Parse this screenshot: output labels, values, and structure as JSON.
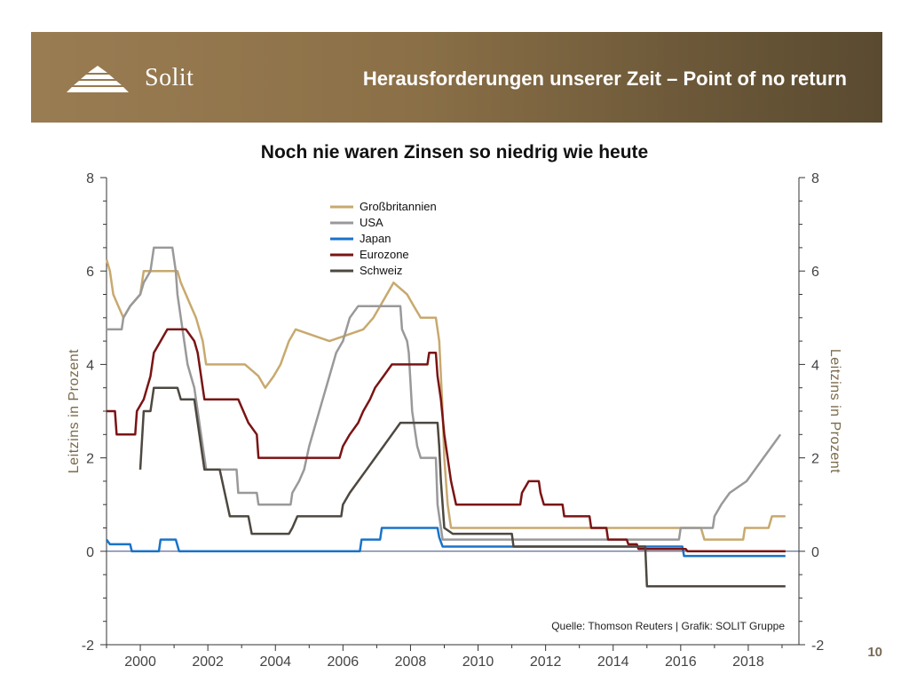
{
  "header": {
    "logo_text": "Solit",
    "title": "Herausforderungen unserer Zeit – Point of no return"
  },
  "page_number": "10",
  "colors": {
    "banner": "#8b7047",
    "grossbritannien": "#c8a96e",
    "usa": "#999999",
    "japan": "#1a73c9",
    "eurozone": "#7a1414",
    "schweiz": "#4d4840"
  },
  "chart_data": {
    "type": "line",
    "title": "Noch nie waren Zinsen so niedrig wie heute",
    "ylabel_left": "Leitzins in Prozent",
    "ylabel_right": "Leitzins in Prozent",
    "xlim": [
      1999,
      2019.5
    ],
    "ylim": [
      -2,
      8
    ],
    "x_ticks": [
      2000,
      2002,
      2004,
      2006,
      2008,
      2010,
      2012,
      2014,
      2016,
      2018
    ],
    "y_ticks": [
      -2,
      0,
      2,
      4,
      6,
      8
    ],
    "source": "Quelle: Thomson Reuters | Grafik: SOLIT Gruppe",
    "legend_position": "top-center",
    "series": [
      {
        "name": "Großbritannien",
        "color_key": "grossbritannien",
        "points": [
          [
            1999.0,
            6.25
          ],
          [
            1999.1,
            6.0
          ],
          [
            1999.2,
            5.5
          ],
          [
            1999.35,
            5.25
          ],
          [
            1999.5,
            5.0
          ],
          [
            1999.7,
            5.25
          ],
          [
            2000.0,
            5.5
          ],
          [
            2000.1,
            6.0
          ],
          [
            2001.1,
            6.0
          ],
          [
            2001.2,
            5.75
          ],
          [
            2001.35,
            5.5
          ],
          [
            2001.5,
            5.25
          ],
          [
            2001.65,
            5.0
          ],
          [
            2001.75,
            4.75
          ],
          [
            2001.85,
            4.5
          ],
          [
            2001.95,
            4.0
          ],
          [
            2003.1,
            4.0
          ],
          [
            2003.5,
            3.75
          ],
          [
            2003.7,
            3.5
          ],
          [
            2003.95,
            3.75
          ],
          [
            2004.15,
            4.0
          ],
          [
            2004.4,
            4.5
          ],
          [
            2004.6,
            4.75
          ],
          [
            2005.6,
            4.5
          ],
          [
            2006.6,
            4.75
          ],
          [
            2006.9,
            5.0
          ],
          [
            2007.1,
            5.25
          ],
          [
            2007.3,
            5.5
          ],
          [
            2007.5,
            5.75
          ],
          [
            2007.9,
            5.5
          ],
          [
            2008.1,
            5.25
          ],
          [
            2008.3,
            5.0
          ],
          [
            2008.75,
            5.0
          ],
          [
            2008.85,
            4.5
          ],
          [
            2008.95,
            3.0
          ],
          [
            2009.0,
            2.0
          ],
          [
            2009.1,
            1.0
          ],
          [
            2009.2,
            0.5
          ],
          [
            2016.6,
            0.5
          ],
          [
            2016.7,
            0.25
          ],
          [
            2017.85,
            0.25
          ],
          [
            2017.9,
            0.5
          ],
          [
            2018.6,
            0.5
          ],
          [
            2018.7,
            0.75
          ],
          [
            2019.1,
            0.75
          ]
        ]
      },
      {
        "name": "USA",
        "color_key": "usa",
        "points": [
          [
            1999.0,
            4.75
          ],
          [
            1999.45,
            4.75
          ],
          [
            1999.5,
            5.0
          ],
          [
            1999.7,
            5.25
          ],
          [
            2000.0,
            5.5
          ],
          [
            2000.1,
            5.75
          ],
          [
            2000.3,
            6.0
          ],
          [
            2000.4,
            6.5
          ],
          [
            2000.95,
            6.5
          ],
          [
            2001.05,
            6.0
          ],
          [
            2001.1,
            5.5
          ],
          [
            2001.2,
            5.0
          ],
          [
            2001.3,
            4.5
          ],
          [
            2001.4,
            4.0
          ],
          [
            2001.5,
            3.75
          ],
          [
            2001.6,
            3.5
          ],
          [
            2001.7,
            3.0
          ],
          [
            2001.8,
            2.5
          ],
          [
            2001.9,
            2.0
          ],
          [
            2001.95,
            1.75
          ],
          [
            2002.85,
            1.75
          ],
          [
            2002.9,
            1.25
          ],
          [
            2003.45,
            1.25
          ],
          [
            2003.5,
            1.0
          ],
          [
            2004.45,
            1.0
          ],
          [
            2004.5,
            1.25
          ],
          [
            2004.7,
            1.5
          ],
          [
            2004.85,
            1.75
          ],
          [
            2005.0,
            2.25
          ],
          [
            2005.2,
            2.75
          ],
          [
            2005.4,
            3.25
          ],
          [
            2005.6,
            3.75
          ],
          [
            2005.8,
            4.25
          ],
          [
            2006.0,
            4.5
          ],
          [
            2006.2,
            5.0
          ],
          [
            2006.45,
            5.25
          ],
          [
            2007.7,
            5.25
          ],
          [
            2007.75,
            4.75
          ],
          [
            2007.9,
            4.5
          ],
          [
            2007.95,
            4.25
          ],
          [
            2008.05,
            3.0
          ],
          [
            2008.2,
            2.25
          ],
          [
            2008.3,
            2.0
          ],
          [
            2008.75,
            2.0
          ],
          [
            2008.8,
            1.0
          ],
          [
            2008.95,
            0.25
          ],
          [
            2015.95,
            0.25
          ],
          [
            2016.0,
            0.5
          ],
          [
            2016.95,
            0.5
          ],
          [
            2017.0,
            0.75
          ],
          [
            2017.2,
            1.0
          ],
          [
            2017.45,
            1.25
          ],
          [
            2017.95,
            1.5
          ],
          [
            2018.2,
            1.75
          ],
          [
            2018.45,
            2.0
          ],
          [
            2018.7,
            2.25
          ],
          [
            2018.95,
            2.5
          ]
        ]
      },
      {
        "name": "Japan",
        "color_key": "japan",
        "points": [
          [
            1999.0,
            0.25
          ],
          [
            1999.1,
            0.15
          ],
          [
            1999.7,
            0.15
          ],
          [
            1999.75,
            0.0
          ],
          [
            2000.55,
            0.0
          ],
          [
            2000.6,
            0.25
          ],
          [
            2001.05,
            0.25
          ],
          [
            2001.15,
            0.0
          ],
          [
            2006.5,
            0.0
          ],
          [
            2006.55,
            0.25
          ],
          [
            2007.1,
            0.25
          ],
          [
            2007.15,
            0.5
          ],
          [
            2008.8,
            0.5
          ],
          [
            2008.85,
            0.3
          ],
          [
            2008.95,
            0.1
          ],
          [
            2016.05,
            0.1
          ],
          [
            2016.1,
            -0.1
          ],
          [
            2019.1,
            -0.1
          ]
        ]
      },
      {
        "name": "Eurozone",
        "color_key": "eurozone",
        "points": [
          [
            1999.0,
            3.0
          ],
          [
            1999.25,
            3.0
          ],
          [
            1999.3,
            2.5
          ],
          [
            1999.85,
            2.5
          ],
          [
            1999.9,
            3.0
          ],
          [
            2000.1,
            3.25
          ],
          [
            2000.2,
            3.5
          ],
          [
            2000.3,
            3.75
          ],
          [
            2000.4,
            4.25
          ],
          [
            2000.6,
            4.5
          ],
          [
            2000.8,
            4.75
          ],
          [
            2001.35,
            4.75
          ],
          [
            2001.6,
            4.5
          ],
          [
            2001.7,
            4.25
          ],
          [
            2001.8,
            3.75
          ],
          [
            2001.9,
            3.25
          ],
          [
            2002.9,
            3.25
          ],
          [
            2003.2,
            2.75
          ],
          [
            2003.45,
            2.5
          ],
          [
            2003.5,
            2.0
          ],
          [
            2005.9,
            2.0
          ],
          [
            2006.0,
            2.25
          ],
          [
            2006.2,
            2.5
          ],
          [
            2006.45,
            2.75
          ],
          [
            2006.6,
            3.0
          ],
          [
            2006.8,
            3.25
          ],
          [
            2006.95,
            3.5
          ],
          [
            2007.2,
            3.75
          ],
          [
            2007.45,
            4.0
          ],
          [
            2008.5,
            4.0
          ],
          [
            2008.55,
            4.25
          ],
          [
            2008.75,
            4.25
          ],
          [
            2008.8,
            3.75
          ],
          [
            2008.9,
            3.25
          ],
          [
            2009.0,
            2.5
          ],
          [
            2009.1,
            2.0
          ],
          [
            2009.2,
            1.5
          ],
          [
            2009.35,
            1.0
          ],
          [
            2011.25,
            1.0
          ],
          [
            2011.3,
            1.25
          ],
          [
            2011.5,
            1.5
          ],
          [
            2011.8,
            1.5
          ],
          [
            2011.85,
            1.25
          ],
          [
            2011.95,
            1.0
          ],
          [
            2012.5,
            1.0
          ],
          [
            2012.55,
            0.75
          ],
          [
            2013.3,
            0.75
          ],
          [
            2013.35,
            0.5
          ],
          [
            2013.8,
            0.5
          ],
          [
            2013.85,
            0.25
          ],
          [
            2014.4,
            0.25
          ],
          [
            2014.45,
            0.15
          ],
          [
            2014.7,
            0.15
          ],
          [
            2014.75,
            0.05
          ],
          [
            2016.15,
            0.05
          ],
          [
            2016.2,
            0.0
          ],
          [
            2019.1,
            0.0
          ]
        ]
      },
      {
        "name": "Schweiz",
        "color_key": "schweiz",
        "points": [
          [
            2000.0,
            1.75
          ],
          [
            2000.1,
            3.0
          ],
          [
            2000.3,
            3.0
          ],
          [
            2000.4,
            3.5
          ],
          [
            2001.1,
            3.5
          ],
          [
            2001.2,
            3.25
          ],
          [
            2001.6,
            3.25
          ],
          [
            2001.7,
            2.75
          ],
          [
            2001.8,
            2.25
          ],
          [
            2001.9,
            1.75
          ],
          [
            2002.35,
            1.75
          ],
          [
            2002.5,
            1.25
          ],
          [
            2002.65,
            0.75
          ],
          [
            2003.2,
            0.75
          ],
          [
            2003.3,
            0.375
          ],
          [
            2004.4,
            0.375
          ],
          [
            2004.5,
            0.5
          ],
          [
            2004.65,
            0.75
          ],
          [
            2005.95,
            0.75
          ],
          [
            2006.0,
            1.0
          ],
          [
            2006.2,
            1.25
          ],
          [
            2006.45,
            1.5
          ],
          [
            2006.7,
            1.75
          ],
          [
            2006.95,
            2.0
          ],
          [
            2007.2,
            2.25
          ],
          [
            2007.45,
            2.5
          ],
          [
            2007.7,
            2.75
          ],
          [
            2008.8,
            2.75
          ],
          [
            2008.85,
            2.25
          ],
          [
            2008.9,
            1.5
          ],
          [
            2009.0,
            0.5
          ],
          [
            2009.25,
            0.375
          ],
          [
            2011.0,
            0.375
          ],
          [
            2011.05,
            0.1
          ],
          [
            2014.95,
            0.1
          ],
          [
            2015.0,
            -0.75
          ],
          [
            2019.1,
            -0.75
          ]
        ]
      }
    ]
  }
}
